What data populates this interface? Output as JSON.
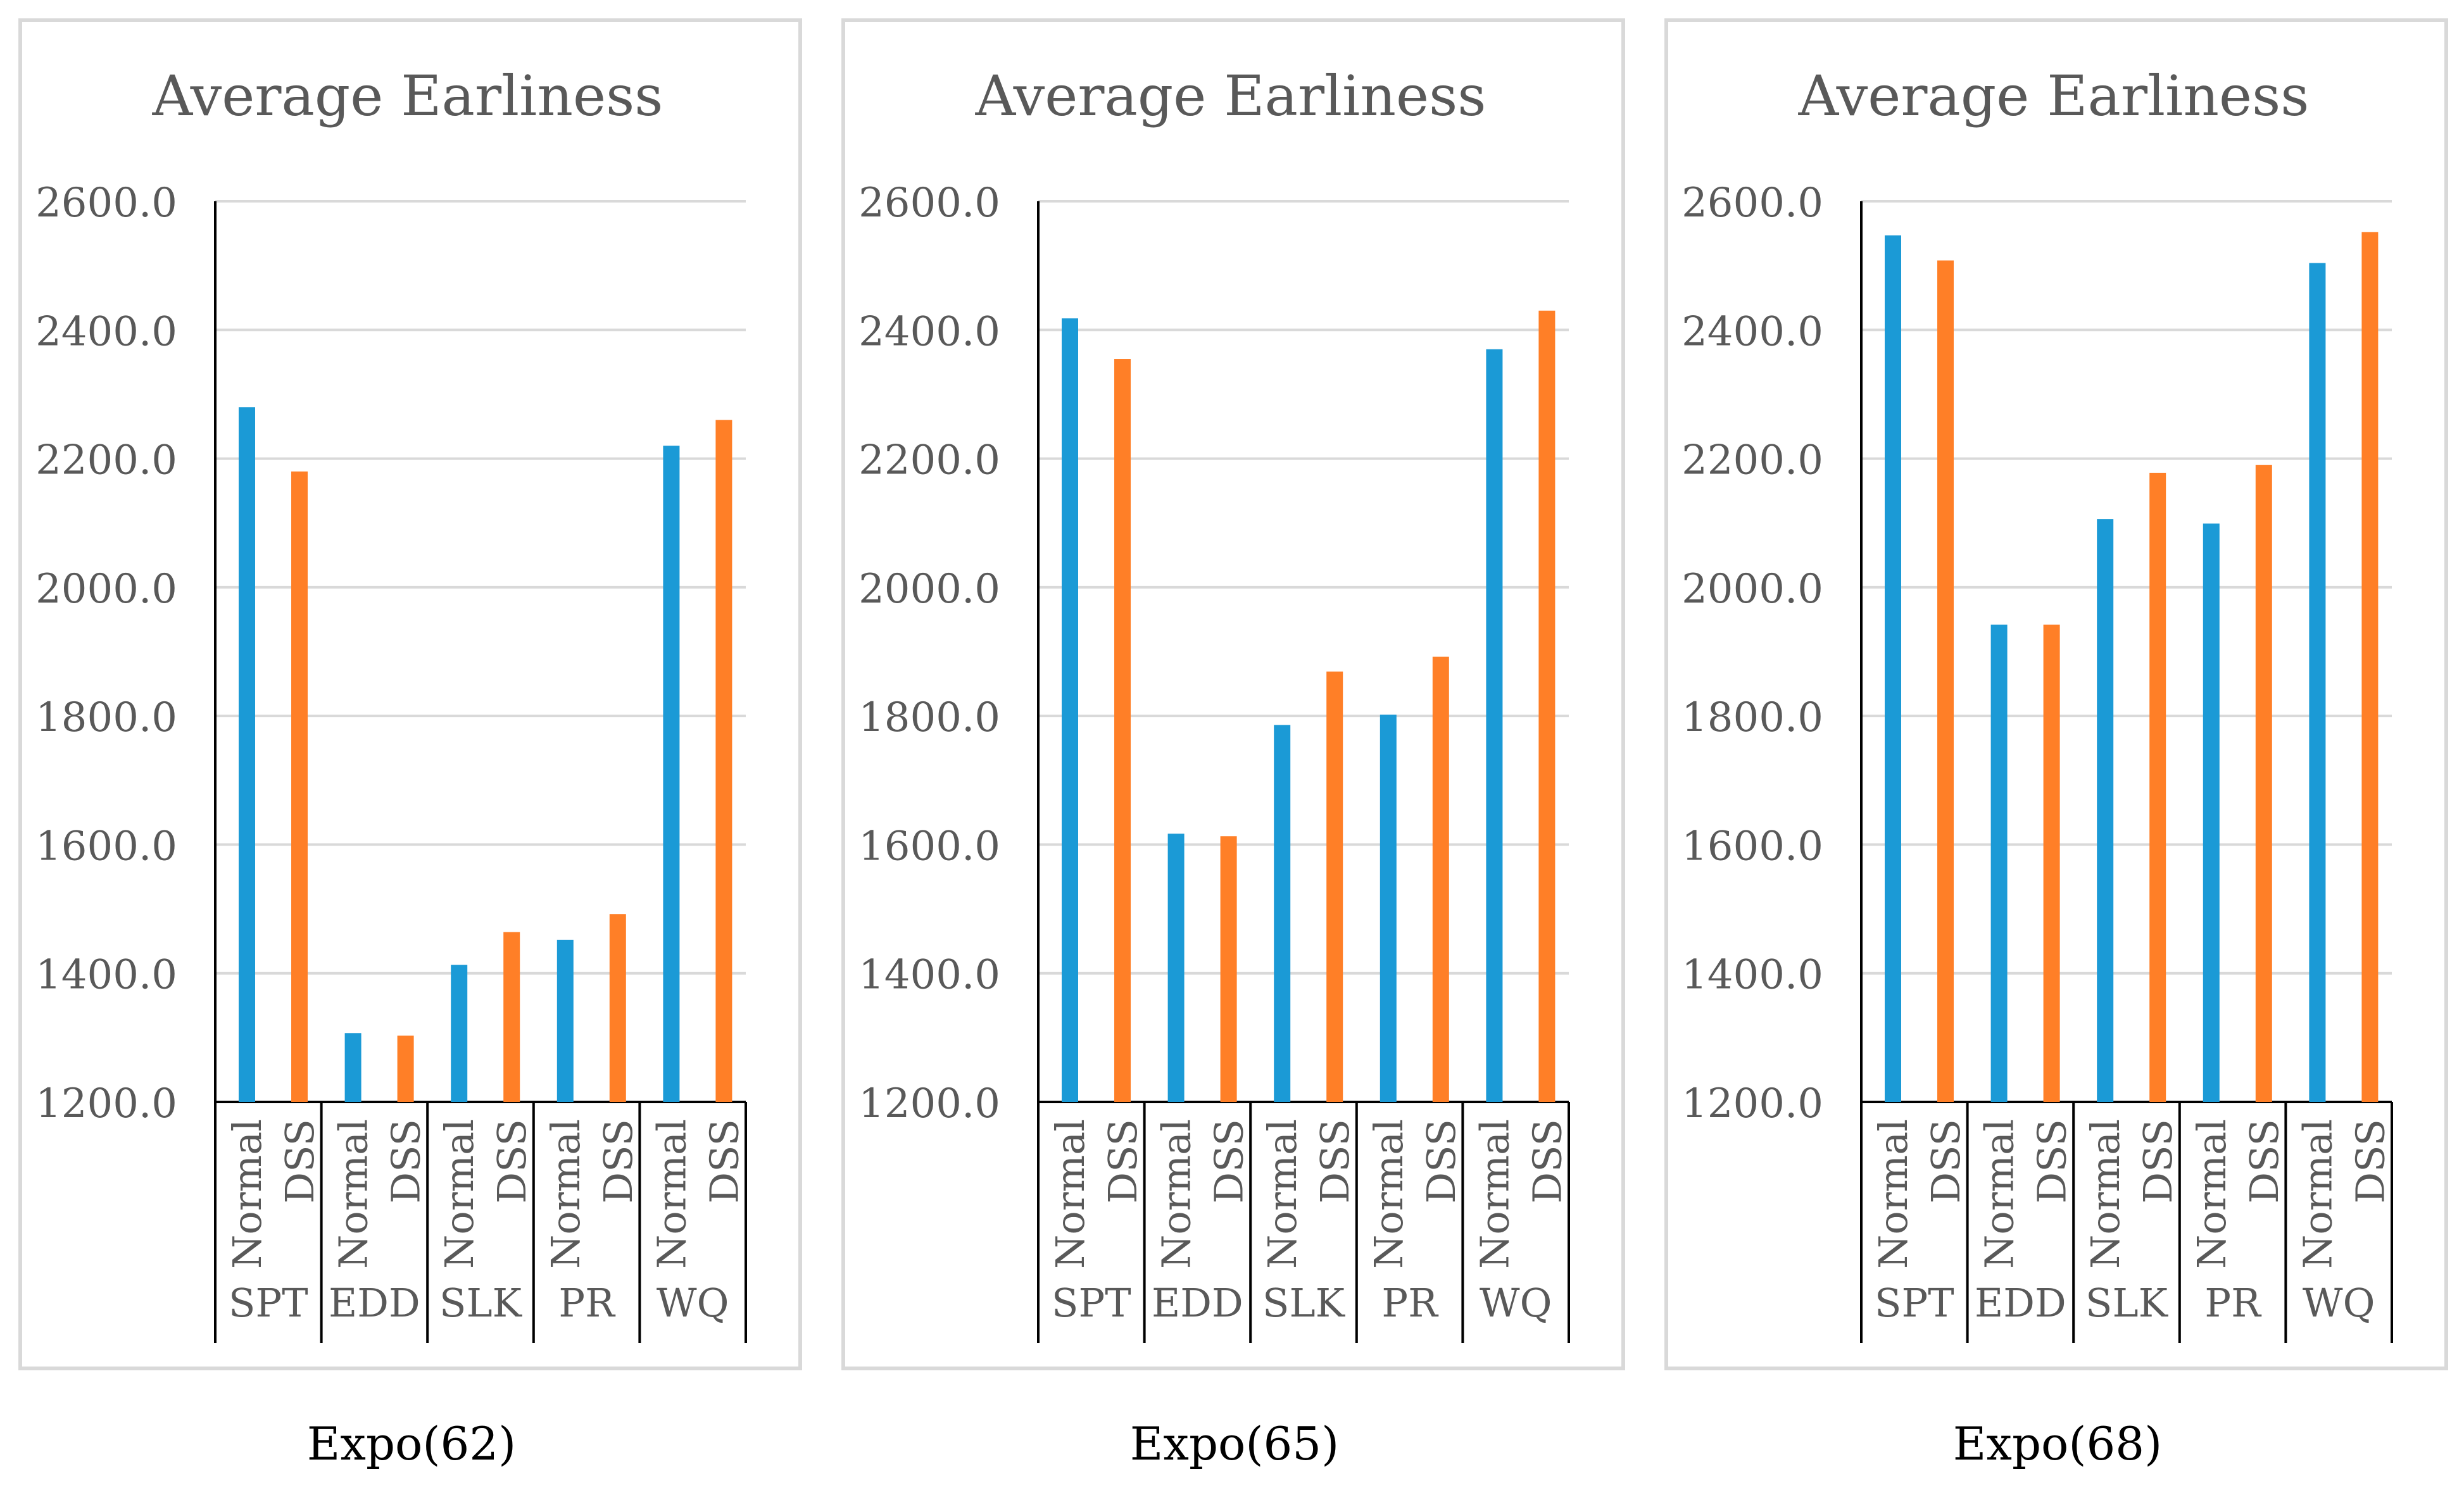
{
  "colors": {
    "normal": "#1B9AD6",
    "dss": "#FF7F27",
    "grid": "#D9D9D9",
    "axis": "#000000",
    "frame": "#D9D9D9",
    "text": "#595959"
  },
  "chart_data": [
    {
      "type": "bar",
      "title": "Average Earliness",
      "caption": "Expo(62)",
      "groups": [
        "SPT",
        "EDD",
        "SLK",
        "PR",
        "WQ"
      ],
      "series": [
        {
          "name": "Normal",
          "values": [
            2280,
            1307,
            1413,
            1452,
            2220
          ]
        },
        {
          "name": "DSS",
          "values": [
            2180,
            1303,
            1464,
            1492,
            2260
          ]
        }
      ],
      "ylim": [
        1200,
        2600
      ],
      "yticks": [
        "2600.0",
        "2400.0",
        "2200.0",
        "2000.0",
        "1800.0",
        "1600.0",
        "1400.0",
        "1200.0"
      ],
      "grid": true
    },
    {
      "type": "bar",
      "title": "Average Earliness",
      "caption": "Expo(65)",
      "groups": [
        "SPT",
        "EDD",
        "SLK",
        "PR",
        "WQ"
      ],
      "series": [
        {
          "name": "Normal",
          "values": [
            2418,
            1617,
            1786,
            1802,
            2370
          ]
        },
        {
          "name": "DSS",
          "values": [
            2355,
            1613,
            1869,
            1892,
            2430
          ]
        }
      ],
      "ylim": [
        1200,
        2600
      ],
      "yticks": [
        "2600.0",
        "2400.0",
        "2200.0",
        "2000.0",
        "1800.0",
        "1600.0",
        "1400.0",
        "1200.0"
      ],
      "grid": true
    },
    {
      "type": "bar",
      "title": "Average Earliness",
      "caption": "Expo(68)",
      "groups": [
        "SPT",
        "EDD",
        "SLK",
        "PR",
        "WQ"
      ],
      "series": [
        {
          "name": "Normal",
          "values": [
            2547,
            1942,
            2106,
            2099,
            2504
          ]
        },
        {
          "name": "DSS",
          "values": [
            2508,
            1942,
            2178,
            2190,
            2552
          ]
        }
      ],
      "ylim": [
        1200,
        2600
      ],
      "yticks": [
        "2600.0",
        "2400.0",
        "2200.0",
        "2000.0",
        "1800.0",
        "1600.0",
        "1400.0",
        "1200.0"
      ],
      "grid": true
    }
  ]
}
